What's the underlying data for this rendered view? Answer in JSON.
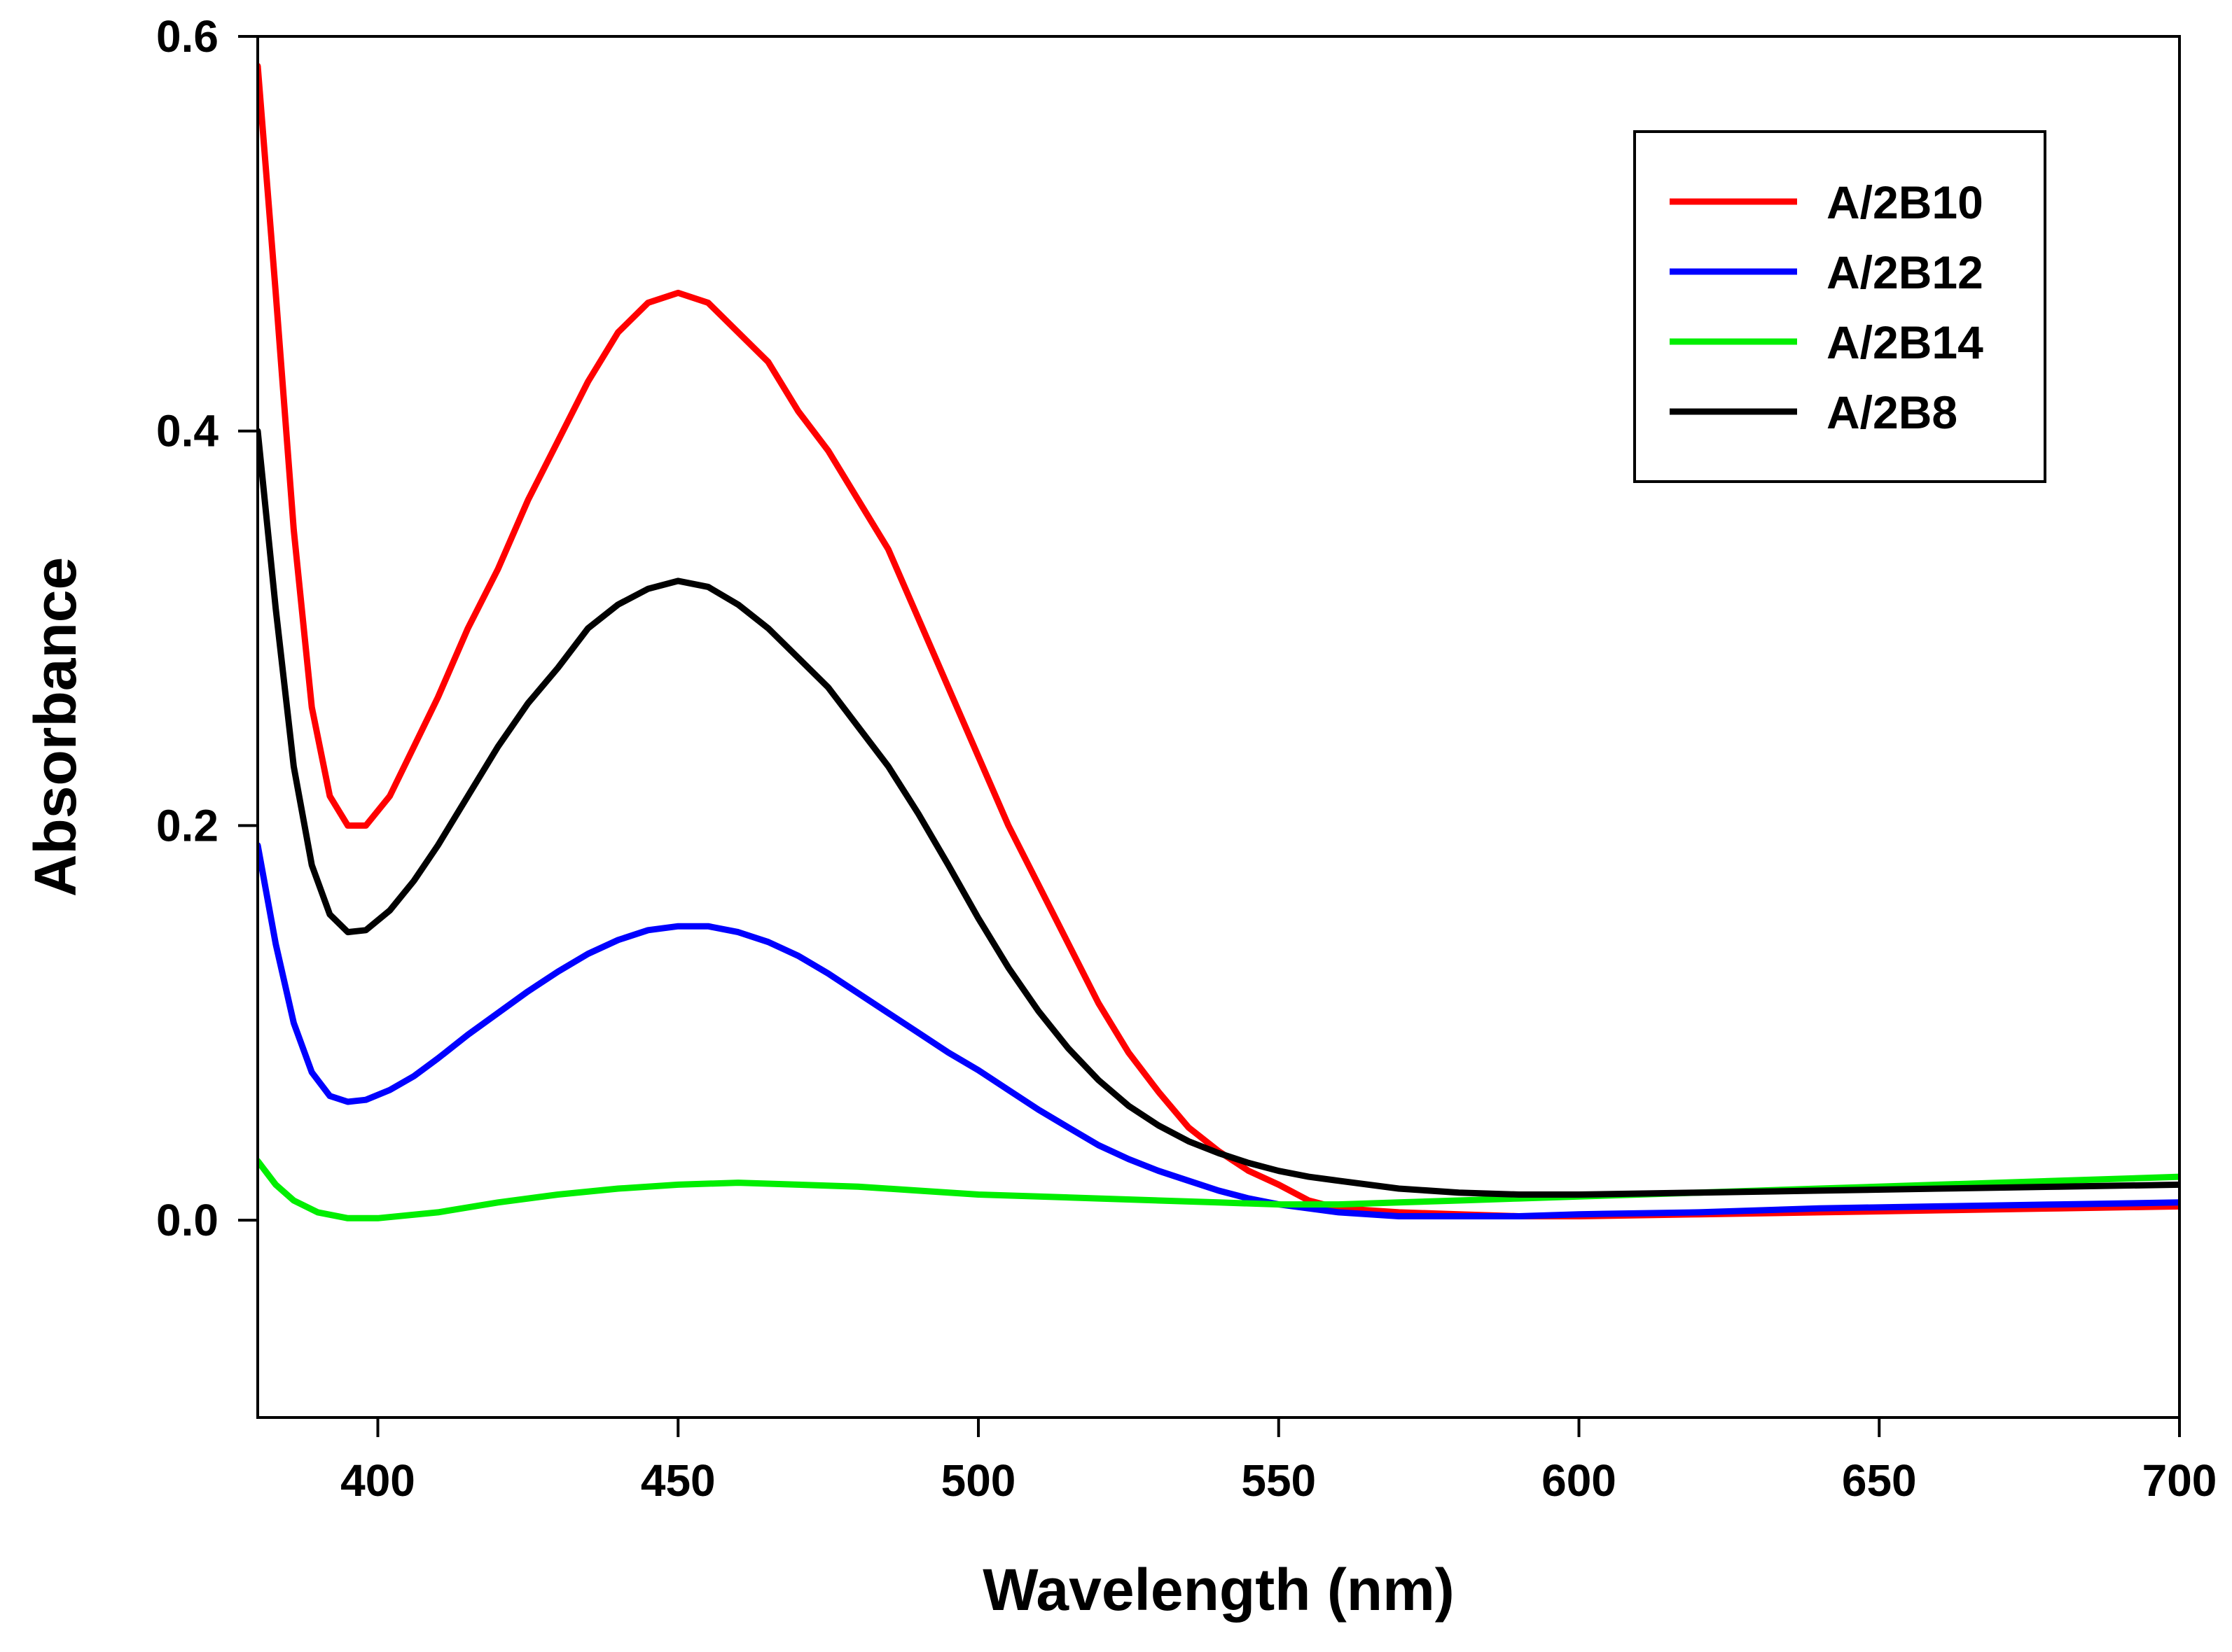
{
  "chart_data": {
    "type": "line",
    "title": "",
    "xlabel": "Wavelength (nm)",
    "ylabel": "Absorbance",
    "xlim": [
      380,
      700
    ],
    "ylim": [
      -0.1,
      0.6
    ],
    "x_ticks": [
      400,
      450,
      500,
      550,
      600,
      650,
      700
    ],
    "x_tick_labels": [
      "400",
      "450",
      "500",
      "550",
      "600",
      "650",
      "700"
    ],
    "y_ticks": [
      0.0,
      0.2,
      0.4,
      0.6
    ],
    "y_tick_labels": [
      "0.0",
      "0.2",
      "0.4",
      "0.6"
    ],
    "grid": false,
    "legend_position": "top-right",
    "series": [
      {
        "name": "A/2B10",
        "color": "#ff0000",
        "points": [
          [
            380,
            0.585
          ],
          [
            383,
            0.47
          ],
          [
            386,
            0.35
          ],
          [
            389,
            0.26
          ],
          [
            392,
            0.215
          ],
          [
            395,
            0.2
          ],
          [
            398,
            0.2
          ],
          [
            402,
            0.215
          ],
          [
            406,
            0.24
          ],
          [
            410,
            0.265
          ],
          [
            415,
            0.3
          ],
          [
            420,
            0.33
          ],
          [
            425,
            0.365
          ],
          [
            430,
            0.395
          ],
          [
            435,
            0.425
          ],
          [
            440,
            0.45
          ],
          [
            445,
            0.465
          ],
          [
            450,
            0.47
          ],
          [
            455,
            0.465
          ],
          [
            460,
            0.45
          ],
          [
            465,
            0.435
          ],
          [
            470,
            0.41
          ],
          [
            475,
            0.39
          ],
          [
            480,
            0.365
          ],
          [
            485,
            0.34
          ],
          [
            490,
            0.305
          ],
          [
            495,
            0.27
          ],
          [
            500,
            0.235
          ],
          [
            505,
            0.2
          ],
          [
            510,
            0.17
          ],
          [
            515,
            0.14
          ],
          [
            520,
            0.11
          ],
          [
            525,
            0.085
          ],
          [
            530,
            0.065
          ],
          [
            535,
            0.047
          ],
          [
            540,
            0.035
          ],
          [
            545,
            0.025
          ],
          [
            550,
            0.018
          ],
          [
            555,
            0.01
          ],
          [
            560,
            0.006
          ],
          [
            570,
            0.004
          ],
          [
            580,
            0.003
          ],
          [
            590,
            0.002
          ],
          [
            600,
            0.002
          ],
          [
            620,
            0.003
          ],
          [
            640,
            0.004
          ],
          [
            660,
            0.005
          ],
          [
            680,
            0.006
          ],
          [
            700,
            0.007
          ]
        ]
      },
      {
        "name": "A/2B12",
        "color": "#0000ff",
        "points": [
          [
            380,
            0.19
          ],
          [
            383,
            0.14
          ],
          [
            386,
            0.1
          ],
          [
            389,
            0.075
          ],
          [
            392,
            0.063
          ],
          [
            395,
            0.06
          ],
          [
            398,
            0.061
          ],
          [
            402,
            0.066
          ],
          [
            406,
            0.073
          ],
          [
            410,
            0.082
          ],
          [
            415,
            0.094
          ],
          [
            420,
            0.105
          ],
          [
            425,
            0.116
          ],
          [
            430,
            0.126
          ],
          [
            435,
            0.135
          ],
          [
            440,
            0.142
          ],
          [
            445,
            0.147
          ],
          [
            450,
            0.149
          ],
          [
            455,
            0.149
          ],
          [
            460,
            0.146
          ],
          [
            465,
            0.141
          ],
          [
            470,
            0.134
          ],
          [
            475,
            0.125
          ],
          [
            480,
            0.115
          ],
          [
            485,
            0.105
          ],
          [
            490,
            0.095
          ],
          [
            495,
            0.085
          ],
          [
            500,
            0.076
          ],
          [
            505,
            0.066
          ],
          [
            510,
            0.056
          ],
          [
            515,
            0.047
          ],
          [
            520,
            0.038
          ],
          [
            525,
            0.031
          ],
          [
            530,
            0.025
          ],
          [
            535,
            0.02
          ],
          [
            540,
            0.015
          ],
          [
            545,
            0.011
          ],
          [
            550,
            0.008
          ],
          [
            560,
            0.004
          ],
          [
            570,
            0.002
          ],
          [
            580,
            0.002
          ],
          [
            590,
            0.002
          ],
          [
            600,
            0.003
          ],
          [
            620,
            0.004
          ],
          [
            640,
            0.006
          ],
          [
            660,
            0.007
          ],
          [
            680,
            0.008
          ],
          [
            700,
            0.009
          ]
        ]
      },
      {
        "name": "A/2B14",
        "color": "#00ee00",
        "points": [
          [
            380,
            0.03
          ],
          [
            383,
            0.018
          ],
          [
            386,
            0.01
          ],
          [
            390,
            0.004
          ],
          [
            395,
            0.001
          ],
          [
            400,
            0.001
          ],
          [
            410,
            0.004
          ],
          [
            420,
            0.009
          ],
          [
            430,
            0.013
          ],
          [
            440,
            0.016
          ],
          [
            450,
            0.018
          ],
          [
            460,
            0.019
          ],
          [
            470,
            0.018
          ],
          [
            480,
            0.017
          ],
          [
            490,
            0.015
          ],
          [
            500,
            0.013
          ],
          [
            510,
            0.012
          ],
          [
            520,
            0.011
          ],
          [
            530,
            0.01
          ],
          [
            540,
            0.009
          ],
          [
            550,
            0.008
          ],
          [
            560,
            0.008
          ],
          [
            570,
            0.009
          ],
          [
            580,
            0.01
          ],
          [
            590,
            0.011
          ],
          [
            600,
            0.012
          ],
          [
            620,
            0.014
          ],
          [
            640,
            0.016
          ],
          [
            660,
            0.018
          ],
          [
            680,
            0.02
          ],
          [
            700,
            0.022
          ]
        ]
      },
      {
        "name": "A/2B8",
        "color": "#000000",
        "points": [
          [
            380,
            0.4
          ],
          [
            383,
            0.31
          ],
          [
            386,
            0.23
          ],
          [
            389,
            0.18
          ],
          [
            392,
            0.155
          ],
          [
            395,
            0.146
          ],
          [
            398,
            0.147
          ],
          [
            402,
            0.157
          ],
          [
            406,
            0.172
          ],
          [
            410,
            0.19
          ],
          [
            415,
            0.215
          ],
          [
            420,
            0.24
          ],
          [
            425,
            0.262
          ],
          [
            430,
            0.28
          ],
          [
            435,
            0.3
          ],
          [
            440,
            0.312
          ],
          [
            445,
            0.32
          ],
          [
            450,
            0.324
          ],
          [
            455,
            0.321
          ],
          [
            460,
            0.312
          ],
          [
            465,
            0.3
          ],
          [
            470,
            0.285
          ],
          [
            475,
            0.27
          ],
          [
            480,
            0.25
          ],
          [
            485,
            0.23
          ],
          [
            490,
            0.206
          ],
          [
            495,
            0.18
          ],
          [
            500,
            0.153
          ],
          [
            505,
            0.128
          ],
          [
            510,
            0.106
          ],
          [
            515,
            0.087
          ],
          [
            520,
            0.071
          ],
          [
            525,
            0.058
          ],
          [
            530,
            0.048
          ],
          [
            535,
            0.04
          ],
          [
            540,
            0.034
          ],
          [
            545,
            0.029
          ],
          [
            550,
            0.025
          ],
          [
            555,
            0.022
          ],
          [
            560,
            0.02
          ],
          [
            570,
            0.016
          ],
          [
            580,
            0.014
          ],
          [
            590,
            0.013
          ],
          [
            600,
            0.013
          ],
          [
            620,
            0.014
          ],
          [
            640,
            0.015
          ],
          [
            660,
            0.016
          ],
          [
            680,
            0.017
          ],
          [
            700,
            0.018
          ]
        ]
      }
    ]
  }
}
